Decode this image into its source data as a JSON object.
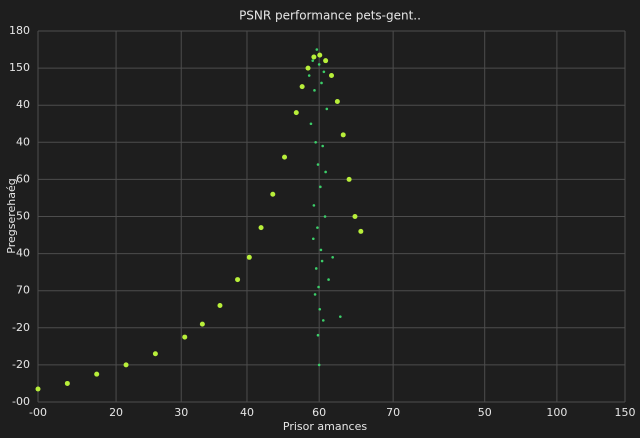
{
  "chart_data": {
    "type": "scatter",
    "title": "PSNR performance pets-gent..",
    "x_label": "Prisor amances",
    "y_label": "Pregserehaég",
    "xlim": [
      0,
      100
    ],
    "ylim": [
      0,
      10
    ],
    "grid": true,
    "xticks": [
      {
        "value": 0,
        "label": "-00"
      },
      {
        "value": 13.3,
        "label": "20"
      },
      {
        "value": 24.4,
        "label": "30"
      },
      {
        "value": 35.6,
        "label": "40"
      },
      {
        "value": 47.9,
        "label": "60"
      },
      {
        "value": 60.5,
        "label": "70"
      },
      {
        "value": 76.1,
        "label": "50"
      },
      {
        "value": 88.4,
        "label": "100"
      },
      {
        "value": 100,
        "label": "150"
      }
    ],
    "yticks": [
      {
        "value": 0,
        "label": "-00"
      },
      {
        "value": 1,
        "label": "-20"
      },
      {
        "value": 2,
        "label": "-20"
      },
      {
        "value": 3,
        "label": "70"
      },
      {
        "value": 4,
        "label": "40"
      },
      {
        "value": 5,
        "label": "50"
      },
      {
        "value": 6,
        "label": "60"
      },
      {
        "value": 7,
        "label": "40"
      },
      {
        "value": 8,
        "label": "40"
      },
      {
        "value": 9,
        "label": "150"
      },
      {
        "value": 10,
        "label": "180"
      }
    ],
    "series": [
      {
        "color": "#b8ef3a",
        "x": [
          0,
          5,
          10,
          15,
          20,
          25,
          28,
          31,
          34,
          36,
          38,
          40,
          42,
          44,
          45,
          46,
          47,
          48,
          49,
          50,
          51,
          52,
          53,
          54,
          55
        ],
        "y": [
          0.35,
          0.5,
          0.75,
          1.0,
          1.3,
          1.75,
          2.1,
          2.6,
          3.3,
          3.9,
          4.7,
          5.6,
          6.6,
          7.8,
          8.5,
          9.0,
          9.3,
          9.35,
          9.2,
          8.8,
          8.1,
          7.2,
          6.0,
          5.0,
          4.6
        ]
      },
      {
        "color": "#3ccf6a",
        "x": [
          46.2,
          46.8,
          47.1,
          47.5,
          47.9,
          48.3,
          48.7,
          49.2,
          46.5,
          47.3,
          47.7,
          48.1,
          48.5,
          49.0,
          47.0,
          47.6,
          48.2,
          48.9,
          47.4,
          47.8,
          48.4,
          46.9,
          48.0,
          47.7,
          49.5,
          48.6,
          47.2,
          47.9,
          51.5,
          50.2
        ],
        "y": [
          8.8,
          9.2,
          8.4,
          9.5,
          9.1,
          8.6,
          8.9,
          7.9,
          7.5,
          7.0,
          6.4,
          5.8,
          6.9,
          6.2,
          5.3,
          4.7,
          4.1,
          5.0,
          3.6,
          3.1,
          3.8,
          4.4,
          2.5,
          1.8,
          3.3,
          2.2,
          2.9,
          1.0,
          2.3,
          3.9
        ]
      }
    ]
  }
}
